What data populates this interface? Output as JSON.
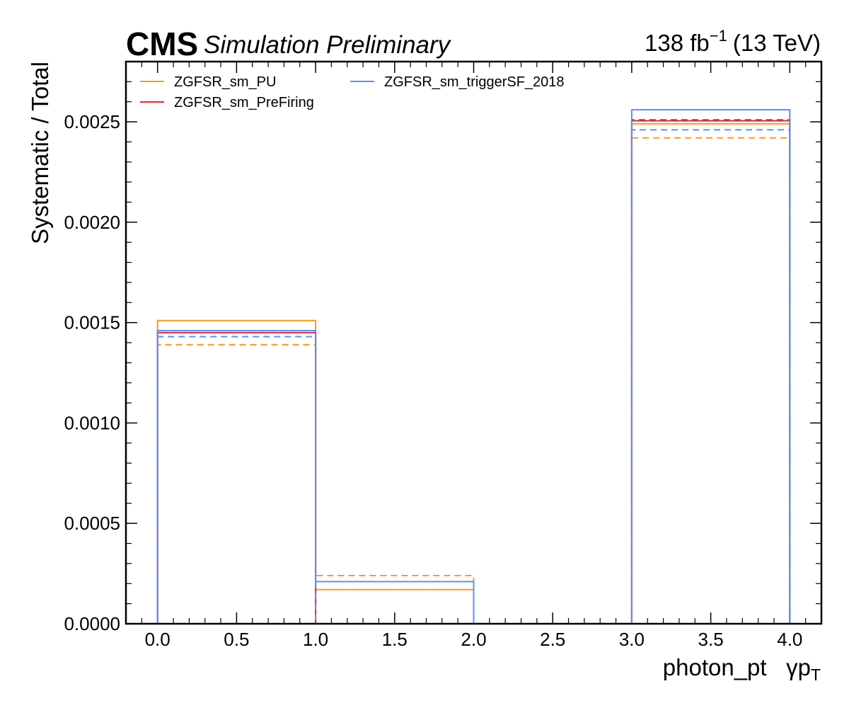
{
  "header": {
    "experiment": "CMS",
    "status": "Simulation Preliminary",
    "lumi_value": "138 fb",
    "lumi_exponent": "−1",
    "energy": "(13 TeV)"
  },
  "chart_data": {
    "type": "step",
    "xlabel": "photon_pt   γp",
    "xlabel_subscript": "T",
    "ylabel": "Systematic / Total",
    "xlim": [
      -0.2,
      4.2
    ],
    "ylim": [
      0,
      0.0028
    ],
    "x_ticks": [
      0.0,
      0.5,
      1.0,
      1.5,
      2.0,
      2.5,
      3.0,
      3.5,
      4.0
    ],
    "x_tick_labels": [
      "0.0",
      "0.5",
      "1.0",
      "1.5",
      "2.0",
      "2.5",
      "3.0",
      "3.5",
      "4.0"
    ],
    "y_ticks": [
      0.0,
      0.0005,
      0.001,
      0.0015,
      0.002,
      0.0025
    ],
    "y_tick_labels": [
      "0.0000",
      "0.0005",
      "0.0010",
      "0.0015",
      "0.0020",
      "0.0025"
    ],
    "bin_edges": [
      0,
      1,
      2,
      3,
      4
    ],
    "legend_placement": "top-left",
    "legend_columns": 2,
    "series": [
      {
        "name": "ZGFSR_sm_PU",
        "color": "#ff9a1a",
        "up": [
          0.00151,
          0.00017,
          0.0,
          0.00249
        ],
        "down": [
          0.00139,
          0.00024,
          0.0,
          0.00242
        ]
      },
      {
        "name": "ZGFSR_sm_PreFiring",
        "color": "#e42536",
        "up": [
          0.00145,
          0.0,
          0.0,
          0.002505
        ],
        "down": [
          0.00146,
          0.0,
          0.0,
          0.00251
        ]
      },
      {
        "name": "ZGFSR_sm_triggerSF_2018",
        "color": "#5790fc",
        "up": [
          0.00146,
          0.00021,
          0.0,
          0.00256
        ],
        "down": [
          0.00143,
          0.0,
          0.0,
          0.00246
        ]
      }
    ]
  }
}
